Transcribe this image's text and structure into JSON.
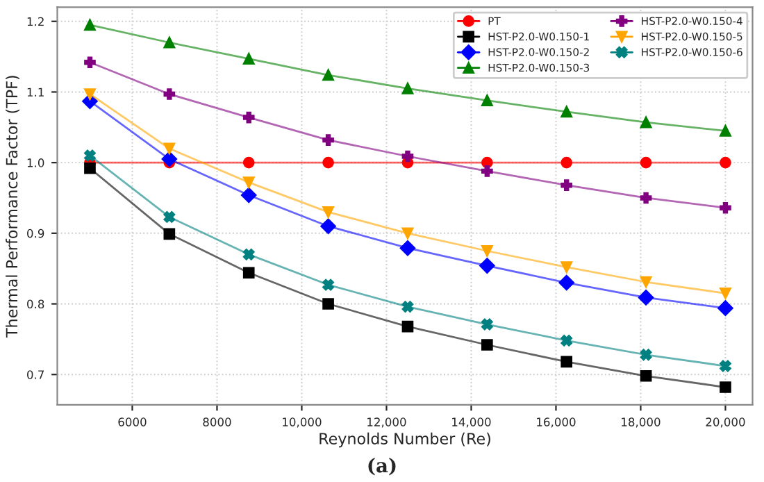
{
  "chart_data": {
    "type": "line",
    "xlabel": "Reynolds Number (Re)",
    "ylabel": "Thermal Performance Factor (TPF)",
    "annotations": [
      "(a)"
    ],
    "x": [
      5000,
      6875,
      8750,
      10625,
      12500,
      14375,
      16250,
      18125,
      20000
    ],
    "series": [
      {
        "name": "PT",
        "color": "#ff0000",
        "marker": "circle",
        "values": [
          1.0,
          1.0,
          1.0,
          1.0,
          1.0,
          1.0,
          1.0,
          1.0,
          1.0
        ]
      },
      {
        "name": "HST-P2.0-W0.150-1",
        "color": "#000000",
        "marker": "square",
        "values": [
          0.992,
          0.899,
          0.844,
          0.8,
          0.768,
          0.742,
          0.718,
          0.698,
          0.682
        ]
      },
      {
        "name": "HST-P2.0-W0.150-2",
        "color": "#0000ff",
        "marker": "diamond",
        "values": [
          1.087,
          1.005,
          0.954,
          0.91,
          0.879,
          0.854,
          0.83,
          0.809,
          0.794
        ]
      },
      {
        "name": "HST-P2.0-W0.150-3",
        "color": "#008000",
        "marker": "triangle",
        "values": [
          1.195,
          1.17,
          1.147,
          1.124,
          1.105,
          1.088,
          1.072,
          1.057,
          1.045
        ]
      },
      {
        "name": "HST-P2.0-W0.150-4",
        "color": "#800080",
        "marker": "cross",
        "values": [
          1.142,
          1.097,
          1.064,
          1.032,
          1.009,
          0.988,
          0.968,
          0.95,
          0.936
        ]
      },
      {
        "name": "HST-P2.0-W0.150-5",
        "color": "#ffa500",
        "marker": "triangle-down",
        "values": [
          1.097,
          1.02,
          0.972,
          0.93,
          0.9,
          0.875,
          0.852,
          0.831,
          0.815
        ]
      },
      {
        "name": "HST-P2.0-W0.150-6",
        "color": "#008080",
        "marker": "x",
        "values": [
          1.01,
          0.923,
          0.87,
          0.827,
          0.796,
          0.771,
          0.748,
          0.728,
          0.712
        ]
      }
    ],
    "xlim": [
      4230,
      20640
    ],
    "ylim": [
      0.657,
      1.22
    ],
    "xticks": [
      6000,
      8000,
      {
        "value": 10000,
        "label": "10,000"
      },
      {
        "value": 12000,
        "label": "12,000"
      },
      {
        "value": 14000,
        "label": "14,000"
      },
      {
        "value": 16000,
        "label": "16,000"
      },
      {
        "value": 18000,
        "label": "18,000"
      },
      {
        "value": 20000,
        "label": "20,000"
      }
    ],
    "yticks": [
      {
        "value": 0.7,
        "label": "0.7"
      },
      {
        "value": 0.8,
        "label": "0.8"
      },
      {
        "value": 0.9,
        "label": "0.9"
      },
      {
        "value": 1.0,
        "label": "1.0"
      },
      {
        "value": 1.1,
        "label": "1.1"
      },
      {
        "value": 1.2,
        "label": "1.2"
      }
    ],
    "grid": true,
    "legend": "top right",
    "line_style": "solid"
  }
}
